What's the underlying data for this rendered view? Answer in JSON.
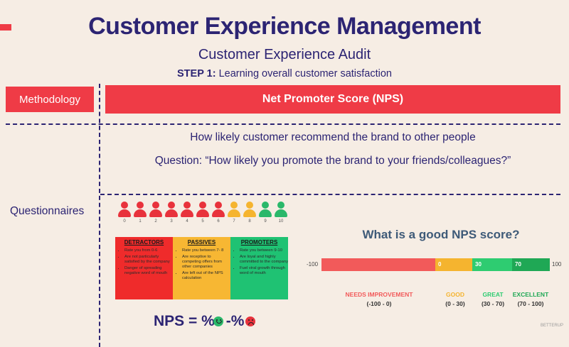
{
  "header": {
    "title": "Customer Experience Management",
    "subtitle": "Customer Experience Audit",
    "step_prefix": "STEP 1:",
    "step_text": " Learning overall customer satisfaction"
  },
  "methodology": {
    "label": "Methodology",
    "value": "Net Promoter Score (NPS)"
  },
  "questions": {
    "line1": "How likely customer recommend the brand to other people",
    "line2": "Question: “How likely you promote the brand to your friends/colleagues?”"
  },
  "questionnaires_label": "Questionnaires",
  "score_people": {
    "numbers": [
      "0",
      "1",
      "2",
      "3",
      "4",
      "5",
      "6",
      "7",
      "8",
      "9",
      "10"
    ],
    "colors": [
      "#e8323c",
      "#e8323c",
      "#e8323c",
      "#e8323c",
      "#e8323c",
      "#e8323c",
      "#e8323c",
      "#f5b42f",
      "#f5b42f",
      "#2ab86a",
      "#2ab86a"
    ]
  },
  "categories": [
    {
      "title": "DETRACTORS",
      "color": "#ef2b2b",
      "bullets": [
        "Rate you from 0-6",
        "Are not particularly satisfied by the company",
        "Danger of spreading negative word of mouth"
      ]
    },
    {
      "title": "PASSIVES",
      "color": "#f7b733",
      "bullets": [
        "Rate you between 7- 8",
        "Are receptive to competing offers from other companies",
        "Are left out of the NPS calculation"
      ]
    },
    {
      "title": "PROMOTERS",
      "color": "#1fc273",
      "bullets": [
        "Rate you between 9-10",
        "Are loyal and highly committed to the company",
        "Fuel viral growth through word of mouth"
      ]
    }
  ],
  "formula": {
    "prefix": "NPS = %",
    "minus": "-%"
  },
  "nps_scale": {
    "title": "What is a good NPS score?",
    "min_label": "-100",
    "max_label": "100",
    "segments": [
      {
        "label": "",
        "color": "#f25a5a"
      },
      {
        "label": "0",
        "color": "#f5b42f"
      },
      {
        "label": "30",
        "color": "#2ecc71"
      },
      {
        "label": "70",
        "color": "#1fa855"
      }
    ],
    "zones": [
      {
        "name": "NEEDS IMPROVEMENT",
        "range": "(-100 - 0)",
        "color": "#f25a5a"
      },
      {
        "name": "GOOD",
        "range": "(0 - 30)",
        "color": "#f5b42f"
      },
      {
        "name": "GREAT",
        "range": "(30 - 70)",
        "color": "#2ecc71"
      },
      {
        "name": "EXCELLENT",
        "range": "(70 - 100)",
        "color": "#1fa855"
      }
    ]
  },
  "watermark": "BETTERUP"
}
